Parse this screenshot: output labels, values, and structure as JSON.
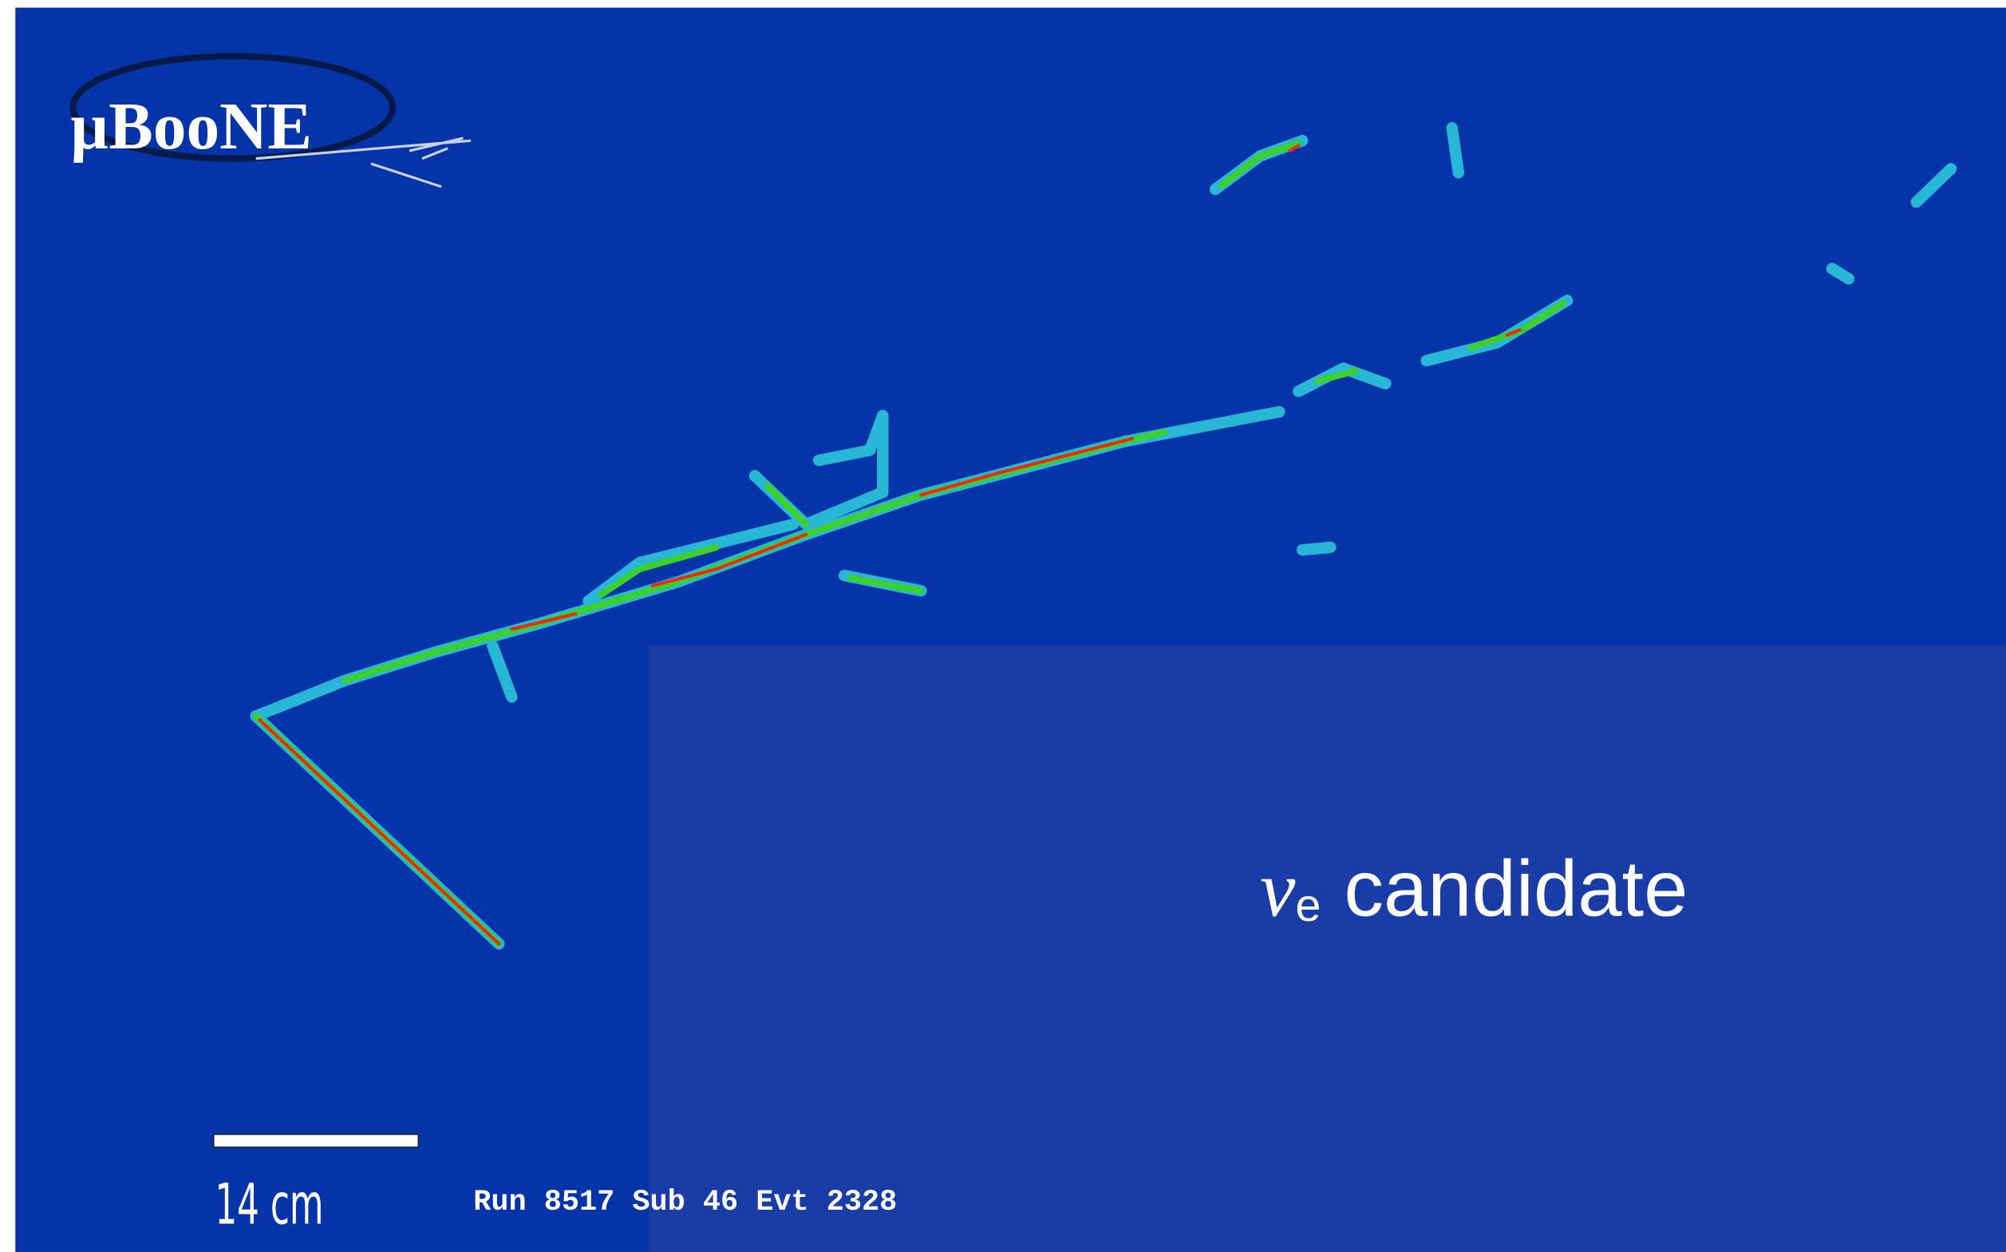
{
  "logo": {
    "text": "µBooNE"
  },
  "label": {
    "symbol": "ν",
    "subscript": "e",
    "text": "candidate"
  },
  "scale_bar": {
    "label": "14 cm"
  },
  "run_info": "Run 8517 Sub 46 Evt 2328"
}
